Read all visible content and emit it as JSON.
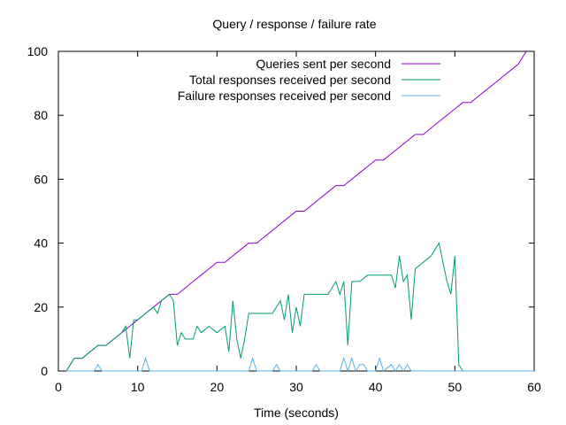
{
  "chart_data": {
    "type": "line",
    "title": "Query / response / failure rate",
    "xlabel": "Time (seconds)",
    "ylabel": "",
    "xlim": [
      0,
      60
    ],
    "ylim": [
      0,
      100
    ],
    "xticks": [
      0,
      10,
      20,
      30,
      40,
      50,
      60
    ],
    "yticks": [
      0,
      20,
      40,
      60,
      80,
      100
    ],
    "grid": false,
    "legend_position": "top-right",
    "series": [
      {
        "name": "Queries sent per second",
        "color": "#9400d3",
        "x": [
          1,
          2,
          3,
          4,
          5,
          6,
          7,
          8,
          9,
          10,
          11,
          12,
          13,
          14,
          15,
          16,
          17,
          18,
          19,
          20,
          21,
          22,
          23,
          24,
          25,
          26,
          27,
          28,
          29,
          30,
          31,
          32,
          33,
          34,
          35,
          36,
          37,
          38,
          39,
          40,
          41,
          42,
          43,
          44,
          45,
          46,
          47,
          48,
          49,
          50,
          51,
          52,
          53,
          54,
          55,
          56,
          57,
          58,
          59
        ],
        "values": [
          0,
          4,
          4,
          6,
          8,
          8,
          10,
          12,
          14,
          16,
          18,
          20,
          22,
          24,
          24,
          26,
          28,
          30,
          32,
          34,
          34,
          36,
          38,
          40,
          40,
          42,
          44,
          46,
          48,
          50,
          50,
          52,
          54,
          56,
          58,
          58,
          60,
          62,
          64,
          66,
          66,
          68,
          70,
          72,
          74,
          74,
          76,
          78,
          80,
          82,
          84,
          84,
          86,
          88,
          90,
          92,
          94,
          96,
          100
        ]
      },
      {
        "name": "Total responses received per second",
        "color": "#009e73",
        "x": [
          1,
          2,
          3,
          4,
          5,
          6,
          7,
          8,
          8.5,
          9,
          9.5,
          10,
          11,
          12,
          12.5,
          13,
          14,
          14.5,
          15,
          15.5,
          16,
          17,
          17.5,
          18,
          19,
          20,
          21,
          21.5,
          22,
          22.5,
          23,
          23.5,
          24,
          25,
          26,
          27,
          28,
          28.5,
          29,
          29.5,
          30,
          30.5,
          31,
          32,
          33,
          34,
          35,
          35.5,
          36,
          36.5,
          37,
          38,
          39,
          40,
          41,
          42,
          42.5,
          43,
          43.5,
          44,
          44.5,
          45,
          46,
          47,
          48,
          48.5,
          49,
          49.5,
          50,
          50.5,
          51
        ],
        "values": [
          0,
          4,
          4,
          6,
          8,
          8,
          10,
          12,
          14,
          4,
          16,
          16,
          18,
          20,
          18,
          22,
          24,
          22,
          8,
          12,
          10,
          10,
          14,
          12,
          14,
          12,
          14,
          6,
          22,
          10,
          4,
          10,
          18,
          18,
          18,
          18,
          22,
          16,
          24,
          12,
          20,
          14,
          24,
          24,
          24,
          24,
          28,
          24,
          28,
          8,
          28,
          28,
          30,
          30,
          30,
          30,
          26,
          36,
          28,
          30,
          16,
          32,
          34,
          36,
          40,
          34,
          28,
          24,
          36,
          2,
          0
        ]
      },
      {
        "name": "Failure responses received per second",
        "color": "#56b4e9",
        "x": [
          1,
          4.5,
          5,
          5.5,
          10,
          10.5,
          11,
          11.5,
          24,
          24.5,
          25,
          27,
          27.5,
          28,
          32,
          32.5,
          33,
          35.5,
          36,
          36.5,
          37,
          37.5,
          38,
          38.5,
          39,
          40,
          40.5,
          41,
          42,
          42.5,
          43,
          43.5,
          44,
          44.5,
          45,
          60
        ],
        "values": [
          0,
          0,
          2,
          0,
          0,
          0,
          4,
          0,
          0,
          4,
          0,
          0,
          2,
          0,
          0,
          2,
          0,
          0,
          4,
          0,
          4,
          0,
          2,
          2,
          0,
          0,
          4,
          0,
          2,
          0,
          2,
          0,
          2,
          0,
          0,
          0
        ]
      }
    ]
  }
}
